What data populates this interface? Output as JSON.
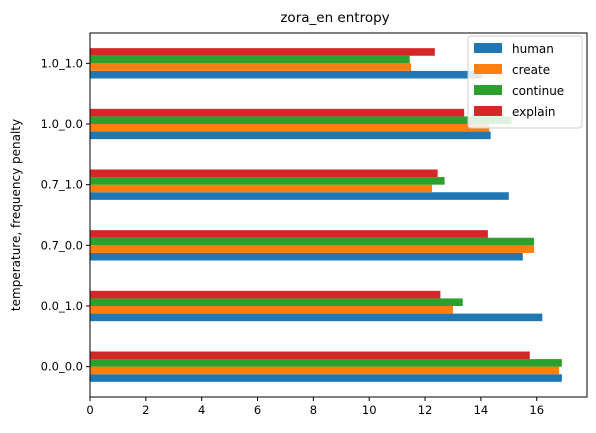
{
  "chart_data": {
    "type": "bar",
    "orientation": "horizontal",
    "title": "zora_en entropy",
    "xlabel": "",
    "ylabel": "temperature, frequency penalty",
    "xlim": [
      0,
      17.8
    ],
    "xticks": [
      0,
      2,
      4,
      6,
      8,
      10,
      12,
      14,
      16
    ],
    "grid": false,
    "legend_position": "top-right",
    "categories": [
      "0.0_0.0",
      "0.0_1.0",
      "0.7_0.0",
      "0.7_1.0",
      "1.0_0.0",
      "1.0_1.0"
    ],
    "series": [
      {
        "name": "human",
        "color": "#1f77b4",
        "values": [
          16.9,
          16.2,
          15.5,
          15.0,
          14.35,
          14.05
        ]
      },
      {
        "name": "create",
        "color": "#ff7f0e",
        "values": [
          16.8,
          13.0,
          15.9,
          12.25,
          14.3,
          11.5
        ]
      },
      {
        "name": "continue",
        "color": "#2ca02c",
        "values": [
          16.9,
          13.35,
          15.9,
          12.7,
          15.1,
          11.45
        ]
      },
      {
        "name": "explain",
        "color": "#d62728",
        "values": [
          15.75,
          12.55,
          14.25,
          12.45,
          13.4,
          12.35
        ]
      }
    ]
  }
}
